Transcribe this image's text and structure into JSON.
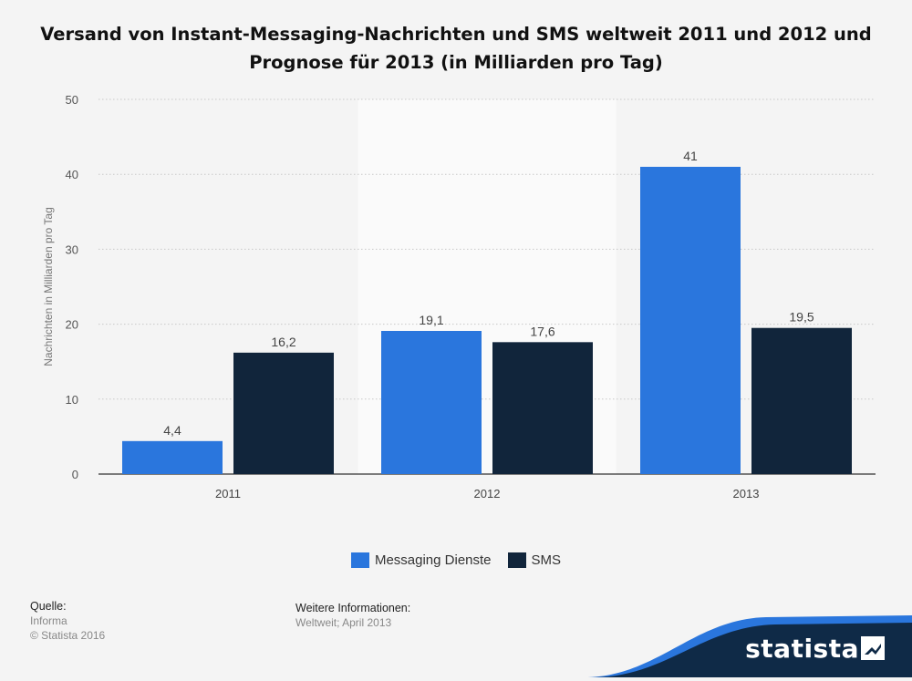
{
  "title": "Versand von Instant-Messaging-Nachrichten und SMS weltweit 2011 und 2012 und Prognose für 2013 (in Milliarden pro Tag)",
  "chart_data": {
    "type": "bar",
    "categories": [
      "2011",
      "2012",
      "2013"
    ],
    "series": [
      {
        "name": "Messaging Dienste",
        "values": [
          4.4,
          19.1,
          41
        ],
        "labels": [
          "4,4",
          "19,1",
          "41"
        ],
        "color": "#2a76dd"
      },
      {
        "name": "SMS",
        "values": [
          16.2,
          17.6,
          19.5
        ],
        "labels": [
          "16,2",
          "17,6",
          "19,5"
        ],
        "color": "#11253b"
      }
    ],
    "ylabel": "Nachrichten in Milliarden pro Tag",
    "ylim": [
      0,
      50
    ],
    "yticks": [
      "0",
      "10",
      "20",
      "30",
      "40",
      "50"
    ],
    "grid": true,
    "legend_position": "bottom-center"
  },
  "source": {
    "label": "Quelle:",
    "lines": [
      "Informa",
      "© Statista 2016"
    ]
  },
  "info": {
    "label": "Weitere Informationen:",
    "lines": [
      "Weltweit; April 2013"
    ]
  },
  "brand": {
    "name": "statista"
  }
}
